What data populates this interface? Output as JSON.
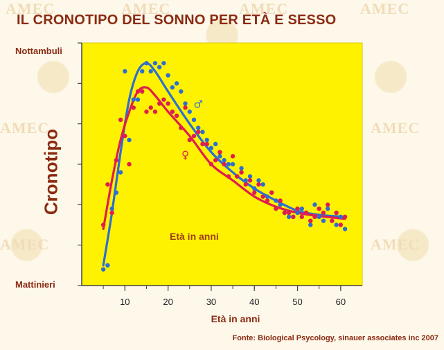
{
  "page": {
    "title": "IL CRONOTIPO DEL SONNO PER ETÀ E SESSO",
    "source": "Fonte: Biological Psycology, sinauer associates inc 2007",
    "watermark": "AMEC"
  },
  "colors": {
    "plot_bg": "#fff200",
    "male": "#2d6fd0",
    "female": "#de1e4f",
    "text": "#8b2a12"
  },
  "chart_data": {
    "type": "scatter",
    "xlabel": "Età in anni",
    "ylabel": "Cronotipo",
    "annotation": "Età in anni",
    "x_ticks": [
      10,
      20,
      30,
      40,
      50,
      60
    ],
    "xlim": [
      0,
      65
    ],
    "ylim": [
      0,
      6
    ],
    "y_top_label": "Nottambuli",
    "y_bottom_label": "Mattinieri",
    "grid": false,
    "series": [
      {
        "name": "♂",
        "color": "#2d6fd0",
        "curve": [
          [
            5,
            0.5
          ],
          [
            7,
            1.8
          ],
          [
            9,
            3.3
          ],
          [
            11,
            4.6
          ],
          [
            13,
            5.3
          ],
          [
            15,
            5.5
          ],
          [
            17,
            5.3
          ],
          [
            20,
            4.8
          ],
          [
            25,
            4.0
          ],
          [
            30,
            3.3
          ],
          [
            35,
            2.8
          ],
          [
            40,
            2.4
          ],
          [
            45,
            2.1
          ],
          [
            50,
            1.85
          ],
          [
            55,
            1.75
          ],
          [
            61,
            1.7
          ]
        ],
        "points": [
          [
            5,
            0.4
          ],
          [
            6,
            0.5
          ],
          [
            7,
            1.9
          ],
          [
            8,
            2.3
          ],
          [
            9,
            2.8
          ],
          [
            10,
            5.3
          ],
          [
            11,
            3.6
          ],
          [
            12,
            4.6
          ],
          [
            13,
            4.6
          ],
          [
            14,
            5.3
          ],
          [
            15,
            5.5
          ],
          [
            16,
            5.3
          ],
          [
            17,
            5.5
          ],
          [
            18,
            5.4
          ],
          [
            19,
            5.5
          ],
          [
            20,
            5.2
          ],
          [
            21,
            4.9
          ],
          [
            22,
            5.0
          ],
          [
            23,
            4.8
          ],
          [
            24,
            4.5
          ],
          [
            25,
            4.3
          ],
          [
            26,
            4.1
          ],
          [
            27,
            3.9
          ],
          [
            28,
            3.8
          ],
          [
            29,
            3.6
          ],
          [
            30,
            3.4
          ],
          [
            31,
            3.5
          ],
          [
            32,
            3.2
          ],
          [
            33,
            3.1
          ],
          [
            34,
            3.0
          ],
          [
            35,
            3.0
          ],
          [
            36,
            2.7
          ],
          [
            37,
            2.9
          ],
          [
            38,
            2.6
          ],
          [
            39,
            2.7
          ],
          [
            40,
            2.4
          ],
          [
            41,
            2.6
          ],
          [
            42,
            2.5
          ],
          [
            43,
            2.2
          ],
          [
            44,
            2.3
          ],
          [
            45,
            2.1
          ],
          [
            46,
            2.0
          ],
          [
            47,
            1.8
          ],
          [
            48,
            1.7
          ],
          [
            49,
            1.7
          ],
          [
            50,
            1.8
          ],
          [
            51,
            1.9
          ],
          [
            52,
            1.8
          ],
          [
            53,
            1.5
          ],
          [
            54,
            2.0
          ],
          [
            55,
            1.7
          ],
          [
            56,
            1.6
          ],
          [
            57,
            1.9
          ],
          [
            58,
            1.6
          ],
          [
            59,
            1.5
          ],
          [
            60,
            1.7
          ],
          [
            61,
            1.4
          ]
        ]
      },
      {
        "name": "♀",
        "color": "#de1e4f",
        "curve": [
          [
            5,
            1.4
          ],
          [
            7,
            2.6
          ],
          [
            9,
            3.6
          ],
          [
            11,
            4.3
          ],
          [
            13,
            4.8
          ],
          [
            15,
            4.9
          ],
          [
            17,
            4.7
          ],
          [
            20,
            4.3
          ],
          [
            25,
            3.7
          ],
          [
            30,
            3.0
          ],
          [
            35,
            2.6
          ],
          [
            40,
            2.2
          ],
          [
            45,
            1.95
          ],
          [
            50,
            1.8
          ],
          [
            55,
            1.72
          ],
          [
            61,
            1.65
          ]
        ],
        "points": [
          [
            5,
            1.5
          ],
          [
            6,
            2.5
          ],
          [
            7,
            1.8
          ],
          [
            8,
            3.1
          ],
          [
            9,
            4.1
          ],
          [
            10,
            3.7
          ],
          [
            11,
            3.0
          ],
          [
            12,
            4.4
          ],
          [
            13,
            4.8
          ],
          [
            14,
            4.8
          ],
          [
            15,
            4.3
          ],
          [
            16,
            4.4
          ],
          [
            17,
            4.3
          ],
          [
            18,
            4.5
          ],
          [
            19,
            4.6
          ],
          [
            20,
            4.5
          ],
          [
            21,
            4.3
          ],
          [
            22,
            4.2
          ],
          [
            23,
            3.9
          ],
          [
            24,
            4.4
          ],
          [
            25,
            3.6
          ],
          [
            26,
            3.7
          ],
          [
            27,
            3.8
          ],
          [
            28,
            3.5
          ],
          [
            29,
            3.5
          ],
          [
            30,
            3.0
          ],
          [
            31,
            3.1
          ],
          [
            32,
            3.3
          ],
          [
            33,
            3.0
          ],
          [
            34,
            2.7
          ],
          [
            35,
            3.2
          ],
          [
            36,
            2.7
          ],
          [
            37,
            2.8
          ],
          [
            38,
            2.5
          ],
          [
            39,
            2.6
          ],
          [
            40,
            2.3
          ],
          [
            41,
            2.5
          ],
          [
            42,
            2.2
          ],
          [
            43,
            2.1
          ],
          [
            44,
            2.3
          ],
          [
            45,
            1.9
          ],
          [
            46,
            2.1
          ],
          [
            47,
            1.8
          ],
          [
            48,
            1.8
          ],
          [
            49,
            1.7
          ],
          [
            50,
            1.9
          ],
          [
            51,
            1.7
          ],
          [
            52,
            1.8
          ],
          [
            53,
            1.6
          ],
          [
            54,
            1.7
          ],
          [
            55,
            1.9
          ],
          [
            56,
            1.8
          ],
          [
            57,
            2.0
          ],
          [
            58,
            1.6
          ],
          [
            59,
            1.8
          ],
          [
            60,
            1.5
          ],
          [
            61,
            1.7
          ]
        ]
      }
    ]
  }
}
